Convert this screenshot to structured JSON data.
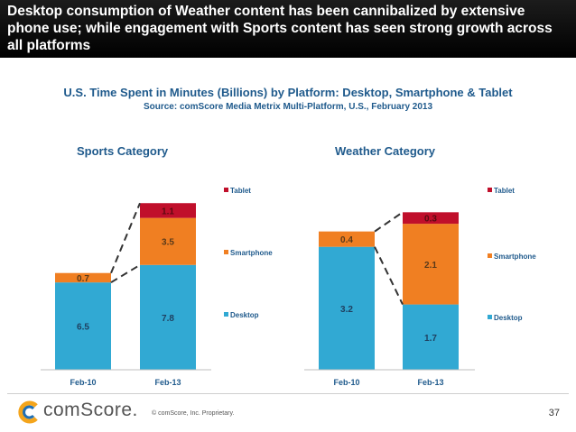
{
  "header": {
    "title": "Desktop consumption of Weather content has been cannibalized by extensive phone use; while engagement with Sports content has seen strong growth across all platforms"
  },
  "subtitle": "U.S. Time Spent in Minutes (Billions) by Platform: Desktop, Smartphone & Tablet",
  "source": "Source: comScore Media Metrix Multi-Platform, U.S., February 2013",
  "colors": {
    "desktop": "#31a9d3",
    "smartphone": "#f07f22",
    "tablet": "#c00f2b",
    "title_blue": "#1f5a8c"
  },
  "chart_data": [
    {
      "type": "bar",
      "stacked": true,
      "title": "Sports Category",
      "categories": [
        "Feb-10",
        "Feb-13"
      ],
      "series": [
        {
          "name": "Desktop",
          "values": [
            6.5,
            7.8
          ]
        },
        {
          "name": "Smartphone",
          "values": [
            0.7,
            3.5
          ]
        },
        {
          "name": "Tablet",
          "values": [
            0,
            1.1
          ]
        }
      ],
      "labels": [
        [
          "6.5",
          "7.8"
        ],
        [
          "0.7",
          "3.5"
        ],
        [
          "",
          "1.1"
        ]
      ],
      "legend_position": "right"
    },
    {
      "type": "bar",
      "stacked": true,
      "title": "Weather Category",
      "categories": [
        "Feb-10",
        "Feb-13"
      ],
      "series": [
        {
          "name": "Desktop",
          "values": [
            3.2,
            1.7
          ]
        },
        {
          "name": "Smartphone",
          "values": [
            0.4,
            2.1
          ]
        },
        {
          "name": "Tablet",
          "values": [
            0,
            0.3
          ]
        }
      ],
      "labels": [
        [
          "3.2",
          "1.7"
        ],
        [
          "0.4",
          "2.1"
        ],
        [
          "",
          "0.3"
        ]
      ],
      "legend_position": "right"
    }
  ],
  "footer": {
    "logo_text": "comScore.",
    "copyright": "© comScore, Inc.    Proprietary.",
    "page_number": "37"
  }
}
